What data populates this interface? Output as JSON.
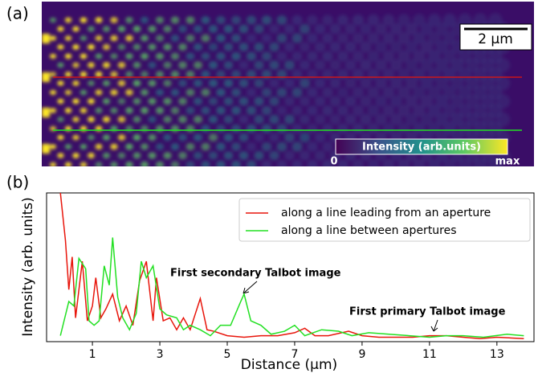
{
  "panel_a": {
    "label": "(a)",
    "scale_bar": "2 μm",
    "colorbar_title": "Intensity (arb.units)",
    "colorbar_min": "0",
    "colorbar_max": "max"
  },
  "chart_data": {
    "type": "line",
    "panel_label": "(b)",
    "x_label": "Distance (μm)",
    "y_label": "Intensity (arb. units)",
    "xlim": [
      -0.36,
      14.1
    ],
    "ylim": [
      0,
      1
    ],
    "xticks": [
      1,
      3,
      5,
      7,
      9,
      11,
      13
    ],
    "legend": "upper right",
    "annotations": [
      "First secondary Talbot image",
      "First primary Talbot image"
    ],
    "series": [
      {
        "name": "along a line leading from an aperture",
        "color": "#e8150b",
        "x": [
          0.05,
          0.2,
          0.3,
          0.4,
          0.5,
          0.7,
          0.85,
          1.0,
          1.1,
          1.25,
          1.4,
          1.6,
          1.8,
          2.0,
          2.2,
          2.4,
          2.6,
          2.8,
          2.9,
          3.1,
          3.3,
          3.5,
          3.7,
          3.9,
          4.2,
          4.4,
          4.6,
          5.0,
          5.5,
          6.0,
          6.5,
          7.0,
          7.3,
          7.6,
          8.0,
          8.6,
          9.0,
          9.5,
          10.0,
          10.5,
          11.0,
          11.5,
          12.0,
          12.5,
          13.0,
          13.8
        ],
        "values": [
          1.0,
          0.68,
          0.35,
          0.57,
          0.16,
          0.54,
          0.14,
          0.24,
          0.43,
          0.16,
          0.22,
          0.32,
          0.14,
          0.24,
          0.11,
          0.41,
          0.54,
          0.14,
          0.43,
          0.14,
          0.16,
          0.08,
          0.16,
          0.08,
          0.29,
          0.08,
          0.07,
          0.04,
          0.03,
          0.04,
          0.04,
          0.06,
          0.09,
          0.04,
          0.04,
          0.07,
          0.04,
          0.03,
          0.03,
          0.03,
          0.04,
          0.04,
          0.03,
          0.02,
          0.03,
          0.02
        ]
      },
      {
        "name": "along a line between apertures",
        "color": "#22e022",
        "x": [
          0.05,
          0.3,
          0.45,
          0.6,
          0.8,
          0.9,
          1.05,
          1.2,
          1.35,
          1.5,
          1.6,
          1.75,
          1.9,
          2.1,
          2.3,
          2.45,
          2.6,
          2.8,
          3.0,
          3.2,
          3.5,
          3.7,
          3.9,
          4.2,
          4.5,
          4.8,
          5.1,
          5.4,
          5.5,
          5.7,
          6.0,
          6.3,
          6.7,
          7.0,
          7.3,
          7.8,
          8.3,
          8.7,
          9.2,
          9.8,
          10.4,
          11.0,
          11.5,
          12.0,
          12.6,
          13.3,
          13.8
        ],
        "values": [
          0.04,
          0.27,
          0.24,
          0.56,
          0.49,
          0.14,
          0.11,
          0.14,
          0.51,
          0.38,
          0.7,
          0.3,
          0.16,
          0.08,
          0.19,
          0.54,
          0.43,
          0.51,
          0.22,
          0.18,
          0.16,
          0.08,
          0.11,
          0.08,
          0.04,
          0.11,
          0.11,
          0.27,
          0.32,
          0.14,
          0.11,
          0.05,
          0.07,
          0.11,
          0.04,
          0.08,
          0.07,
          0.04,
          0.06,
          0.05,
          0.04,
          0.03,
          0.04,
          0.04,
          0.03,
          0.05,
          0.04
        ]
      }
    ]
  }
}
